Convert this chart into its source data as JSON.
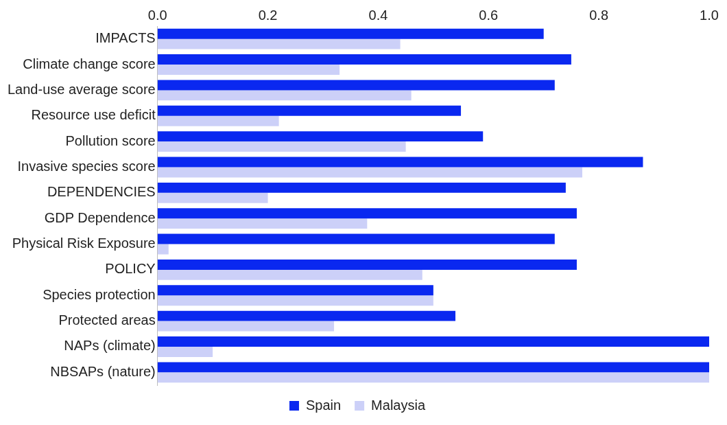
{
  "chart_data": {
    "type": "bar",
    "orientation": "horizontal",
    "categories": [
      "IMPACTS",
      "Climate change score",
      "Land-use average score",
      "Resource use deficit",
      "Pollution score",
      "Invasive species score",
      "DEPENDENCIES",
      "GDP Dependence",
      "Physical Risk Exposure",
      "POLICY",
      "Species protection",
      "Protected areas",
      "NAPs (climate)",
      "NBSAPs (nature)"
    ],
    "series": [
      {
        "name": "Spain",
        "color": "#0a28f0",
        "values": [
          0.7,
          0.75,
          0.72,
          0.55,
          0.59,
          0.88,
          0.74,
          0.76,
          0.72,
          0.76,
          0.5,
          0.54,
          1.0,
          1.0
        ]
      },
      {
        "name": "Malaysia",
        "color": "#ccd0f8",
        "values": [
          0.44,
          0.33,
          0.46,
          0.22,
          0.45,
          0.77,
          0.2,
          0.38,
          0.02,
          0.48,
          0.5,
          0.32,
          0.1,
          1.0
        ]
      }
    ],
    "xlim": [
      0,
      1
    ],
    "xticks": [
      {
        "value": 0,
        "label": "0.0"
      },
      {
        "value": 0.2,
        "label": "0.2"
      },
      {
        "value": 0.4,
        "label": "0.4"
      },
      {
        "value": 0.6,
        "label": "0.6"
      },
      {
        "value": 0.8,
        "label": "0.8"
      },
      {
        "value": 1,
        "label": "1.0"
      }
    ],
    "grid": false,
    "legend": "bottom"
  }
}
